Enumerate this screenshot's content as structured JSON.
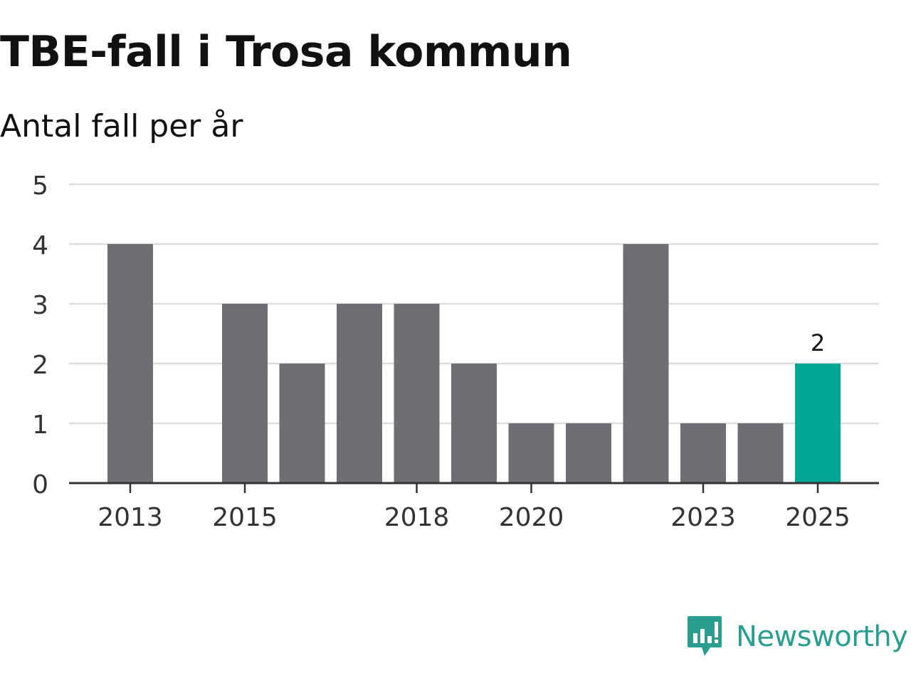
{
  "header": {
    "title": "TBE-fall i Trosa kommun",
    "subtitle": "Antal fall per år"
  },
  "chart_data": {
    "type": "bar",
    "title": "TBE-fall i Trosa kommun",
    "subtitle": "Antal fall per år",
    "categories": [
      "2013",
      "2014",
      "2015",
      "2016",
      "2017",
      "2018",
      "2019",
      "2020",
      "2021",
      "2022",
      "2023",
      "2024",
      "2025"
    ],
    "values": [
      4,
      0,
      3,
      2,
      3,
      3,
      2,
      1,
      1,
      4,
      1,
      1,
      2
    ],
    "x_tick_labels": [
      "2013",
      "2015",
      "2018",
      "2020",
      "2023",
      "2025"
    ],
    "y_ticks": [
      0,
      1,
      2,
      3,
      4,
      5
    ],
    "ylim": [
      0,
      5
    ],
    "grid": true,
    "highlight_index": 12,
    "highlight_label": "2",
    "bar_color": "#6f6e74",
    "highlight_color": "#00a596",
    "xlabel": "",
    "ylabel": ""
  },
  "brand": {
    "name": "Newsworthy",
    "color": "#2a9d8f",
    "icon": "newsworthy-logo-icon"
  }
}
